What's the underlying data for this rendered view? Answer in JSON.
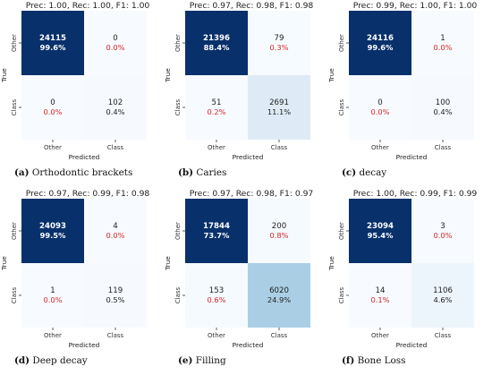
{
  "chart_data": [
    {
      "type": "heatmap",
      "caption_label": "(a)",
      "caption_text": "Orthodontic brackets",
      "title": "Prec: 1.00, Rec: 1.00, F1: 1.00",
      "xlabel": "Predicted",
      "ylabel": "True",
      "x_categories": [
        "Other",
        "Class"
      ],
      "y_categories": [
        "Other",
        "Class"
      ],
      "cells": [
        {
          "count": "24115",
          "percent": "99.6%"
        },
        {
          "count": "0",
          "percent": "0.0%"
        },
        {
          "count": "0",
          "percent": "0.0%"
        },
        {
          "count": "102",
          "percent": "0.4%"
        }
      ]
    },
    {
      "type": "heatmap",
      "caption_label": "(b)",
      "caption_text": "Caries",
      "title": "Prec: 0.97, Rec: 0.98, F1: 0.98",
      "xlabel": "Predicted",
      "ylabel": "True",
      "x_categories": [
        "Other",
        "Class"
      ],
      "y_categories": [
        "Other",
        "Class"
      ],
      "cells": [
        {
          "count": "21396",
          "percent": "88.4%"
        },
        {
          "count": "79",
          "percent": "0.3%"
        },
        {
          "count": "51",
          "percent": "0.2%"
        },
        {
          "count": "2691",
          "percent": "11.1%"
        }
      ]
    },
    {
      "type": "heatmap",
      "caption_label": "(c)",
      "caption_text": "decay",
      "title": "Prec: 0.99, Rec: 1.00, F1: 1.00",
      "xlabel": "Predicted",
      "ylabel": "True",
      "x_categories": [
        "Other",
        "Class"
      ],
      "y_categories": [
        "Other",
        "Class"
      ],
      "cells": [
        {
          "count": "24116",
          "percent": "99.6%"
        },
        {
          "count": "1",
          "percent": "0.0%"
        },
        {
          "count": "0",
          "percent": "0.0%"
        },
        {
          "count": "100",
          "percent": "0.4%"
        }
      ]
    },
    {
      "type": "heatmap",
      "caption_label": "(d)",
      "caption_text": "Deep decay",
      "title": "Prec: 0.97, Rec: 0.99, F1: 0.98",
      "xlabel": "Predicted",
      "ylabel": "True",
      "x_categories": [
        "Other",
        "Class"
      ],
      "y_categories": [
        "Other",
        "Class"
      ],
      "cells": [
        {
          "count": "24093",
          "percent": "99.5%"
        },
        {
          "count": "4",
          "percent": "0.0%"
        },
        {
          "count": "1",
          "percent": "0.0%"
        },
        {
          "count": "119",
          "percent": "0.5%"
        }
      ]
    },
    {
      "type": "heatmap",
      "caption_label": "(e)",
      "caption_text": "Filling",
      "title": "Prec: 0.97, Rec: 0.98, F1: 0.97",
      "xlabel": "Predicted",
      "ylabel": "True",
      "x_categories": [
        "Other",
        "Class"
      ],
      "y_categories": [
        "Other",
        "Class"
      ],
      "cells": [
        {
          "count": "17844",
          "percent": "73.7%"
        },
        {
          "count": "200",
          "percent": "0.8%"
        },
        {
          "count": "153",
          "percent": "0.6%"
        },
        {
          "count": "6020",
          "percent": "24.9%"
        }
      ]
    },
    {
      "type": "heatmap",
      "caption_label": "(f)",
      "caption_text": "Bone Loss",
      "title": "Prec: 1.00, Rec: 0.99, F1: 0.99",
      "xlabel": "Predicted",
      "ylabel": "True",
      "x_categories": [
        "Other",
        "Class"
      ],
      "y_categories": [
        "Other",
        "Class"
      ],
      "cells": [
        {
          "count": "23094",
          "percent": "95.4%"
        },
        {
          "count": "3",
          "percent": "0.0%"
        },
        {
          "count": "14",
          "percent": "0.1%"
        },
        {
          "count": "1106",
          "percent": "4.6%"
        }
      ]
    }
  ],
  "colors": {
    "cmap_low": "#f7fbff",
    "cmap_high": "#08306b",
    "off_diagonal_text": "#d62728",
    "dark_text": "#ffffff",
    "light_text": "#222222"
  }
}
